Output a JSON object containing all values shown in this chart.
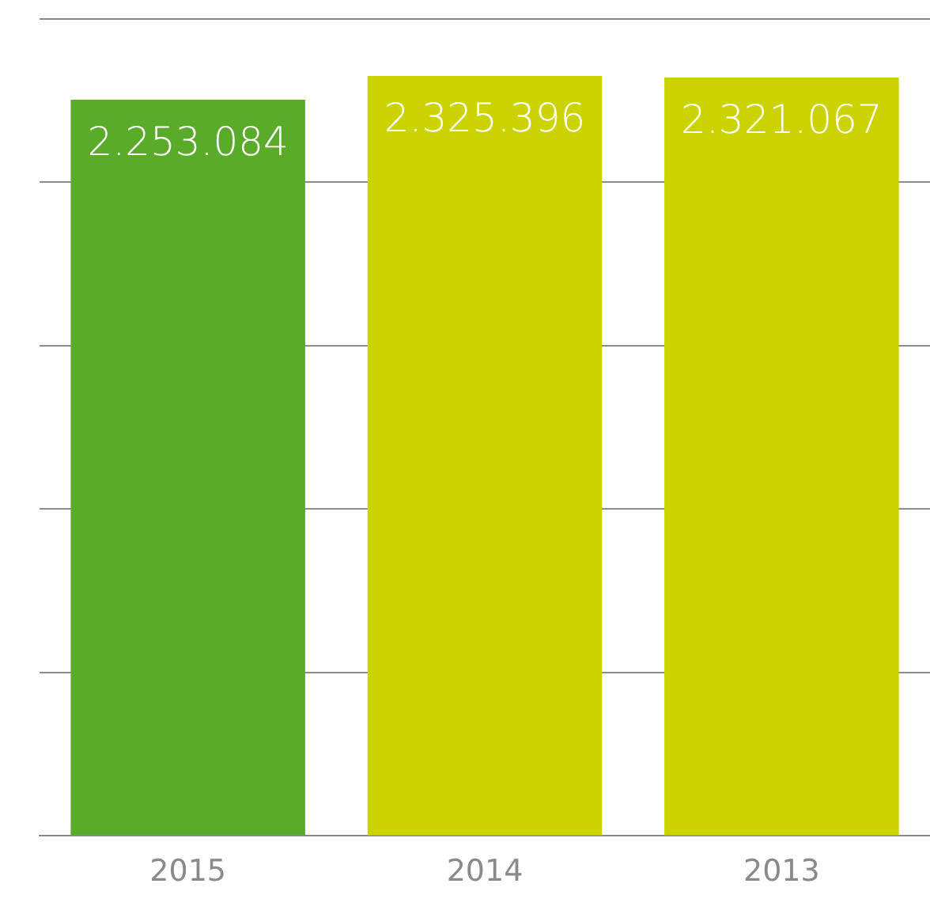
{
  "chart_data": {
    "type": "bar",
    "categories": [
      "2015",
      "2014",
      "2013"
    ],
    "values": [
      2253084,
      2325396,
      2321067
    ],
    "colors": [
      "#5aab2a",
      "#cbd300",
      "#cbd300"
    ],
    "value_labels": [
      "2.253.084",
      "2.325.396",
      "2.321.067"
    ],
    "ylim": [
      0,
      2500000
    ],
    "yticks": [
      {
        "value": 0,
        "label": null
      },
      {
        "value": 500000,
        "label": null
      },
      {
        "value": 1000000,
        "label": null
      },
      {
        "value": 1500000,
        "label": null
      },
      {
        "value": 2000000,
        "label": null
      },
      {
        "value": 2500000,
        "label": null
      }
    ],
    "grid": "y",
    "tick_labels": "x",
    "legend": false
  }
}
